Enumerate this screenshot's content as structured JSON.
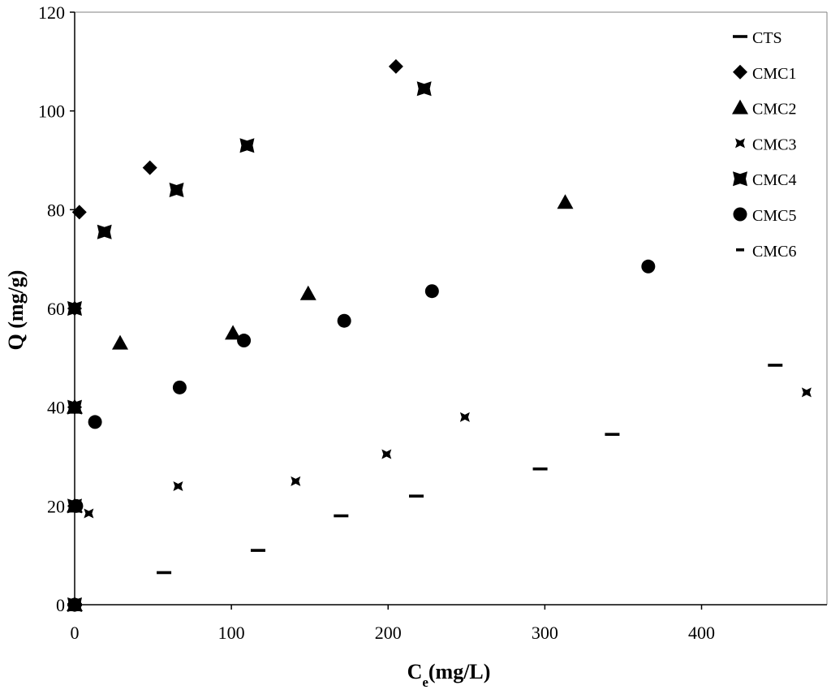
{
  "chart_data": {
    "type": "scatter",
    "xlabel": "Ce(mg/L)",
    "xlabel_main": "C",
    "xlabel_sub": "e",
    "xlabel_rest": "(mg/L)",
    "ylabel": "Q (mg/g)",
    "xlim": [
      0,
      480
    ],
    "ylim": [
      0,
      120
    ],
    "x_ticks": [
      0,
      100,
      200,
      300,
      400
    ],
    "y_ticks": [
      0,
      20,
      40,
      60,
      80,
      100,
      120
    ],
    "grid": false,
    "legend_position": "top-right",
    "series": [
      {
        "name": "CTS",
        "marker": "dash",
        "points": [
          [
            0,
            0
          ],
          [
            57,
            6.5
          ],
          [
            117,
            11
          ],
          [
            170,
            18
          ],
          [
            218,
            22
          ],
          [
            297,
            27.5
          ],
          [
            343,
            34.5
          ],
          [
            447,
            48.5
          ]
        ]
      },
      {
        "name": "CMC1",
        "marker": "diamond",
        "points": [
          [
            0,
            0
          ],
          [
            0,
            20
          ],
          [
            0,
            40
          ],
          [
            0,
            60
          ],
          [
            3,
            79.5
          ],
          [
            48,
            88.5
          ],
          [
            205,
            109
          ]
        ]
      },
      {
        "name": "CMC2",
        "marker": "triangle",
        "points": [
          [
            0,
            0
          ],
          [
            0,
            20
          ],
          [
            0,
            40
          ],
          [
            29,
            53
          ],
          [
            101,
            55
          ],
          [
            149,
            63
          ],
          [
            313,
            81.5
          ]
        ]
      },
      {
        "name": "CMC3",
        "marker": "bowtie",
        "points": [
          [
            0,
            0
          ],
          [
            0,
            20
          ],
          [
            9,
            18.5
          ],
          [
            66,
            24
          ],
          [
            141,
            25
          ],
          [
            199,
            30.5
          ],
          [
            249,
            38
          ],
          [
            467,
            43
          ]
        ]
      },
      {
        "name": "CMC4",
        "marker": "square",
        "points": [
          [
            0,
            0
          ],
          [
            0,
            20
          ],
          [
            0,
            40
          ],
          [
            0,
            60
          ],
          [
            19,
            75.5
          ],
          [
            65,
            84
          ],
          [
            110,
            93
          ],
          [
            223,
            104.5
          ]
        ]
      },
      {
        "name": "CMC5",
        "marker": "circle",
        "points": [
          [
            0,
            0
          ],
          [
            1,
            20
          ],
          [
            13,
            37
          ],
          [
            67,
            44
          ],
          [
            108,
            53.5
          ],
          [
            172,
            57.5
          ],
          [
            228,
            63.5
          ],
          [
            366,
            68.5
          ]
        ]
      },
      {
        "name": "CMC6",
        "marker": "shortdash",
        "points": [
          [
            0,
            0
          ],
          [
            0,
            20
          ],
          [
            0,
            40
          ],
          [
            0,
            60
          ]
        ]
      }
    ]
  }
}
